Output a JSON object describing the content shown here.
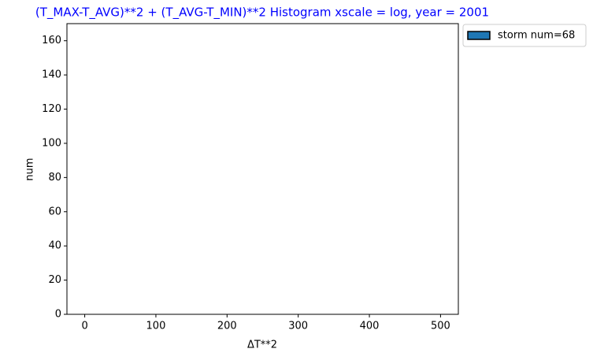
{
  "chart_data": {
    "type": "histogram",
    "title": "(T_MAX-T_AVG)**2 + (T_AVG-T_MIN)**2 Histogram xscale = log, year = 2001",
    "title_color": "#0000ff",
    "xlabel": "ΔT**2",
    "ylabel": "num",
    "bins": [
      0,
      50,
      100,
      150,
      200,
      250,
      300,
      350,
      400,
      450,
      500
    ],
    "series": [
      {
        "name": "storm num=68",
        "color": "#1f77b4",
        "edgecolor": "#000000",
        "values": [
          0,
          0,
          0,
          0,
          0,
          0,
          0,
          0,
          0,
          0
        ]
      }
    ],
    "xlim": [
      -25,
      525
    ],
    "xticks": [
      0,
      100,
      200,
      300,
      400,
      500
    ],
    "ylim": [
      0,
      170
    ],
    "yticks": [
      0,
      20,
      40,
      60,
      80,
      100,
      120,
      140,
      160
    ],
    "legend": "outside upper right"
  }
}
